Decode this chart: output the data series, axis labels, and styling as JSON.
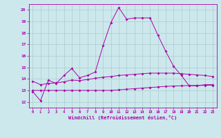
{
  "xlabel": "Windchill (Refroidissement éolien,°C)",
  "background_color": "#cce8ec",
  "grid_color": "#aacccc",
  "line_color": "#aa00aa",
  "xlim": [
    -0.5,
    23.5
  ],
  "ylim": [
    11.5,
    20.5
  ],
  "xticks": [
    0,
    1,
    2,
    3,
    4,
    5,
    6,
    7,
    8,
    9,
    10,
    11,
    12,
    13,
    14,
    15,
    16,
    17,
    18,
    19,
    20,
    21,
    22,
    23
  ],
  "yticks": [
    12,
    13,
    14,
    15,
    16,
    17,
    18,
    19,
    20
  ],
  "series": [
    [
      12.9,
      12.1,
      13.9,
      13.6,
      14.3,
      14.9,
      14.1,
      14.3,
      14.6,
      16.9,
      18.9,
      20.2,
      19.2,
      19.3,
      19.3,
      19.3,
      17.8,
      16.4,
      15.1,
      14.3,
      13.4,
      13.4,
      13.5,
      13.5
    ],
    [
      13.8,
      13.5,
      13.6,
      13.65,
      13.75,
      13.9,
      13.85,
      13.95,
      14.05,
      14.15,
      14.2,
      14.3,
      14.35,
      14.4,
      14.45,
      14.5,
      14.5,
      14.5,
      14.5,
      14.45,
      14.4,
      14.35,
      14.3,
      14.2
    ],
    [
      13.0,
      13.0,
      13.0,
      13.0,
      13.0,
      13.0,
      13.0,
      13.0,
      13.0,
      13.0,
      13.0,
      13.05,
      13.1,
      13.15,
      13.2,
      13.25,
      13.3,
      13.35,
      13.38,
      13.4,
      13.42,
      13.43,
      13.44,
      13.45
    ]
  ]
}
